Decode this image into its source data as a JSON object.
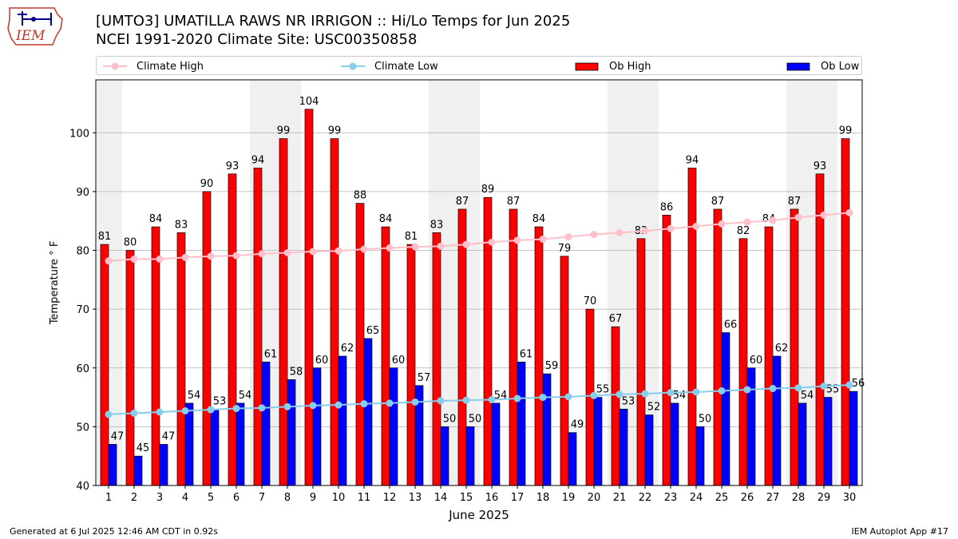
{
  "title_line1": "[UMTO3] UMATILLA RAWS NR IRRIGON :: Hi/Lo Temps for Jun 2025",
  "title_line2": "NCEI 1991-2020 Climate Site: USC00350858",
  "logo_text": "IEM",
  "footer_left": "Generated at 6 Jul 2025 12:46 AM CDT in 0.92s",
  "footer_right": "IEM Autoplot App #17",
  "legend": {
    "climate_high": "Climate High",
    "climate_low": "Climate Low",
    "ob_high": "Ob High",
    "ob_low": "Ob Low"
  },
  "colors": {
    "ob_high": "#ff0000",
    "ob_low": "#0000ff",
    "climate_high": "#ffc0cb",
    "climate_low": "#87ceeb",
    "weekend_band": "#f0f0f0",
    "grid": "#b0b0b0"
  },
  "chart_data": {
    "type": "bar",
    "xlabel": "June 2025",
    "ylabel": "Temperature ° F",
    "ylim": [
      40,
      109
    ],
    "yticks": [
      40,
      50,
      60,
      70,
      80,
      90,
      100
    ],
    "grid": "horizontal",
    "legend_position": "top",
    "categories": [
      "1",
      "2",
      "3",
      "4",
      "5",
      "6",
      "7",
      "8",
      "9",
      "10",
      "11",
      "12",
      "13",
      "14",
      "15",
      "16",
      "17",
      "18",
      "19",
      "20",
      "21",
      "22",
      "23",
      "24",
      "25",
      "26",
      "27",
      "28",
      "29",
      "30"
    ],
    "shaded_days": [
      1,
      7,
      8,
      14,
      15,
      21,
      22,
      28,
      29
    ],
    "series": [
      {
        "name": "Ob High",
        "kind": "bar",
        "values": [
          81,
          80,
          84,
          83,
          90,
          93,
          94,
          99,
          104,
          99,
          88,
          84,
          81,
          83,
          87,
          89,
          87,
          84,
          79,
          70,
          67,
          82,
          86,
          94,
          87,
          82,
          84,
          87,
          93,
          99
        ]
      },
      {
        "name": "Ob Low",
        "kind": "bar",
        "values": [
          47,
          45,
          47,
          54,
          53,
          54,
          61,
          58,
          60,
          62,
          65,
          60,
          57,
          50,
          50,
          54,
          61,
          59,
          49,
          55,
          53,
          52,
          54,
          50,
          66,
          60,
          62,
          54,
          55,
          56
        ]
      },
      {
        "name": "Climate High",
        "kind": "line",
        "values": [
          78.2,
          78.5,
          78.5,
          78.8,
          79.0,
          79.1,
          79.4,
          79.6,
          79.8,
          79.9,
          80.2,
          80.4,
          80.6,
          80.7,
          81.0,
          81.4,
          81.7,
          81.9,
          82.3,
          82.7,
          83.0,
          83.3,
          83.7,
          84.1,
          84.5,
          84.8,
          85.1,
          85.6,
          86.0,
          86.4
        ]
      },
      {
        "name": "Climate Low",
        "kind": "line",
        "values": [
          52.1,
          52.3,
          52.5,
          52.7,
          52.9,
          53.1,
          53.2,
          53.4,
          53.6,
          53.7,
          53.9,
          54.0,
          54.2,
          54.4,
          54.5,
          54.6,
          54.8,
          55.0,
          55.1,
          55.3,
          55.5,
          55.6,
          55.8,
          55.9,
          56.1,
          56.3,
          56.5,
          56.6,
          56.9,
          57.1
        ]
      }
    ]
  }
}
